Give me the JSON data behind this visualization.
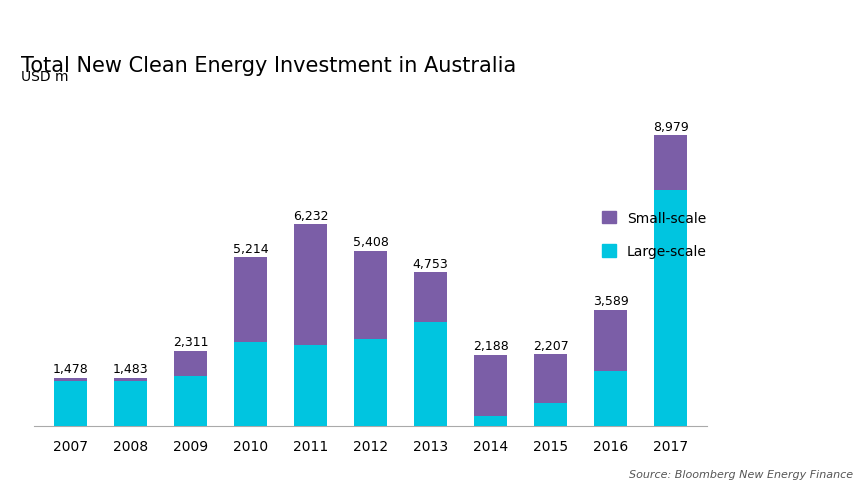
{
  "years": [
    "2007",
    "2008",
    "2009",
    "2010",
    "2011",
    "2012",
    "2013",
    "2014",
    "2015",
    "2016",
    "2017"
  ],
  "totals": [
    1478,
    1483,
    2311,
    5214,
    6232,
    5408,
    4753,
    2188,
    2207,
    3589,
    8979
  ],
  "large_scale": [
    1378,
    1383,
    1550,
    2600,
    2500,
    2700,
    3200,
    300,
    700,
    1700,
    7300
  ],
  "small_scale": [
    100,
    100,
    761,
    2614,
    3732,
    2708,
    1553,
    1888,
    1507,
    1889,
    1679
  ],
  "large_scale_color": "#00c5e0",
  "small_scale_color": "#7b5ea7",
  "title": "Total New Clean Energy Investment in Australia",
  "ylabel": "USD m",
  "source": "Source: Bloomberg New Energy Finance",
  "bar_width": 0.55,
  "ylim": [
    0,
    10200
  ],
  "background_color": "#ffffff",
  "title_fontsize": 15,
  "label_fontsize": 9,
  "tick_fontsize": 10,
  "source_fontsize": 8
}
